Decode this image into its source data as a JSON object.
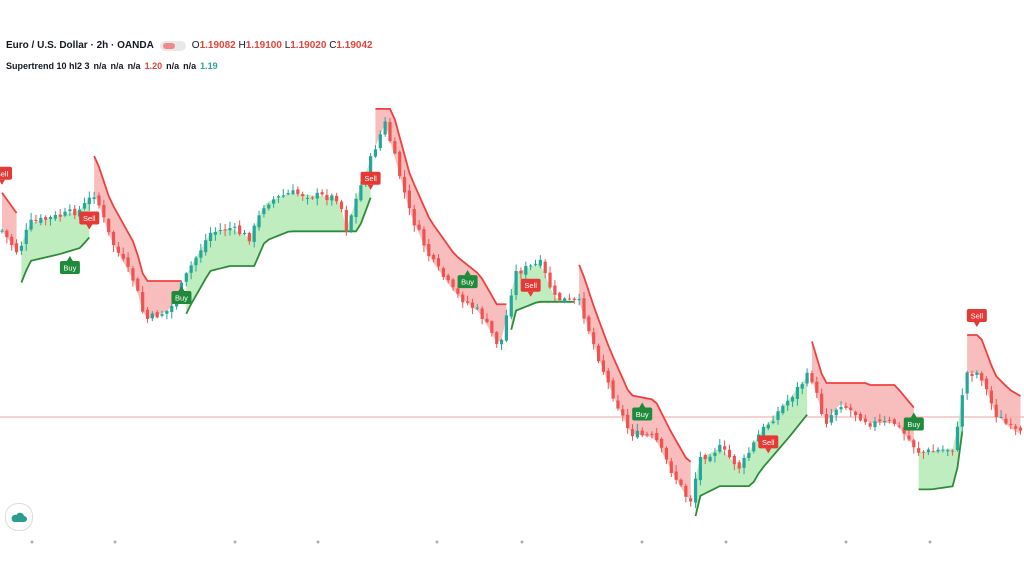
{
  "header": {
    "symbol": "Euro / U.S. Dollar · 2h · OANDA",
    "open_label": "O",
    "open": "1.19082",
    "high_label": "H",
    "high": "1.19100",
    "low_label": "L",
    "low": "1.19020",
    "close_label": "C",
    "close": "1.19042"
  },
  "indicator": {
    "name": "Supertrend 10 hl2 3",
    "v1": "n/a",
    "v2": "n/a",
    "v3": "n/a",
    "v4": "1.20",
    "v5": "n/a",
    "v6": "n/a",
    "v7": "1.19"
  },
  "colors": {
    "up": "#26a69a",
    "down": "#ef5350",
    "supertrend_up": "#2e8b3a",
    "supertrend_down": "#f04040",
    "fill_up": "#b9ebb9",
    "fill_down": "#f7b6b6",
    "buy_label": "#1f8a3c",
    "sell_label": "#e53935",
    "hline": "#f2a0a0"
  },
  "chart_data": {
    "type": "candlestick",
    "indicator": "supertrend",
    "signals": [
      {
        "label": "Sell",
        "bar": 0
      },
      {
        "label": "Buy",
        "bar": 14
      },
      {
        "label": "Sell",
        "bar": 18
      },
      {
        "label": "Buy",
        "bar": 37
      },
      {
        "label": "Sell",
        "bar": 76
      },
      {
        "label": "Buy",
        "bar": 96
      },
      {
        "label": "Sell",
        "bar": 109
      },
      {
        "label": "Buy",
        "bar": 132
      },
      {
        "label": "Sell",
        "bar": 158
      },
      {
        "label": "Buy",
        "bar": 188
      },
      {
        "label": "Sell",
        "bar": 201
      }
    ]
  },
  "icons": {
    "logo": "tradingview-cloud-icon"
  }
}
